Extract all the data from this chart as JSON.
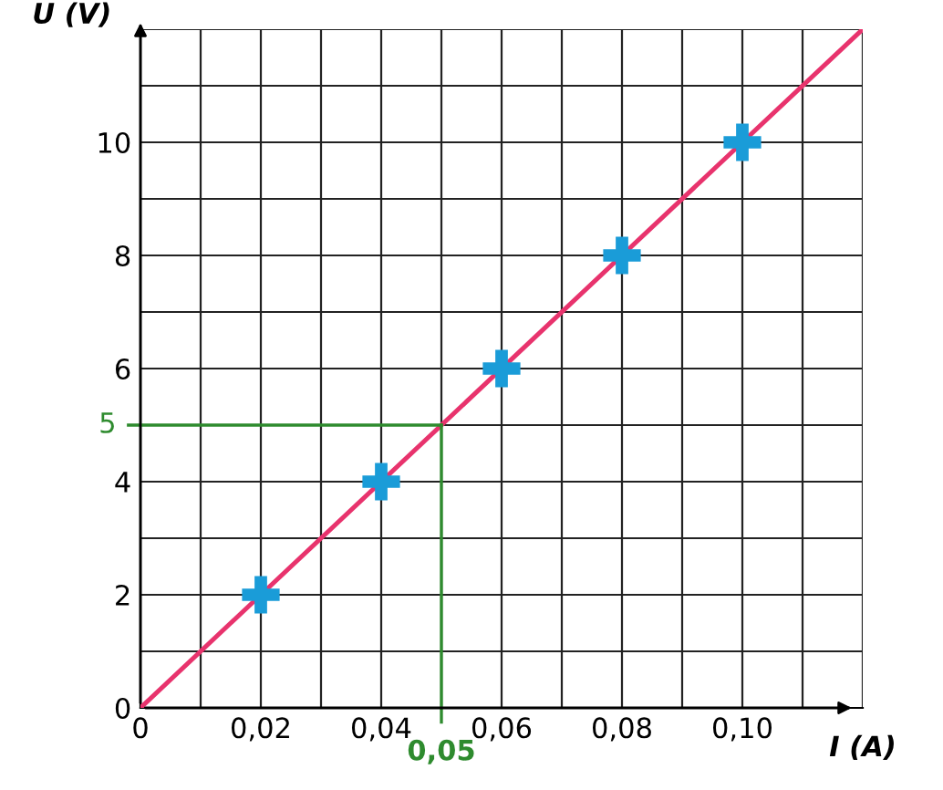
{
  "chart_data": {
    "type": "scatter",
    "xlabel": "I (A)",
    "ylabel": "U (V)",
    "series": [
      {
        "color": "#1a9cd8",
        "marker": "cross",
        "x": [
          0.02,
          0.04,
          0.06,
          0.08,
          0.1
        ],
        "values": [
          2,
          4,
          6,
          8,
          10
        ]
      },
      {
        "type": "line",
        "color": "#e8336d",
        "marker": "none",
        "x": [
          0,
          0.12
        ],
        "values": [
          0,
          12
        ]
      }
    ],
    "xlim": [
      0,
      0.12
    ],
    "ylim": [
      0,
      12
    ],
    "xticks": [
      {
        "value": 0,
        "label": "0"
      },
      {
        "value": 0.01,
        "label": null
      },
      {
        "value": 0.02,
        "label": "0,02"
      },
      {
        "value": 0.03,
        "label": null
      },
      {
        "value": 0.04,
        "label": "0,04"
      },
      {
        "value": 0.05,
        "label": null
      },
      {
        "value": 0.06,
        "label": "0,06"
      },
      {
        "value": 0.07,
        "label": null
      },
      {
        "value": 0.08,
        "label": "0,08"
      },
      {
        "value": 0.09,
        "label": null
      },
      {
        "value": 0.1,
        "label": "0,10"
      },
      {
        "value": 0.11,
        "label": null
      },
      {
        "value": 0.12,
        "label": null
      }
    ],
    "yticks": [
      0,
      {
        "value": 1,
        "label": null
      },
      2,
      {
        "value": 3,
        "label": null
      },
      4,
      {
        "value": 5,
        "label": null
      },
      6,
      {
        "value": 7,
        "label": null
      },
      8,
      {
        "value": 9,
        "label": null
      },
      10,
      {
        "value": 11,
        "label": null
      },
      {
        "value": 12,
        "label": null
      }
    ],
    "grid": true,
    "ref_lines": [
      {
        "axis": "x",
        "value": 0.05,
        "label": "0,05",
        "color": "#2e8b2e"
      },
      {
        "axis": "y",
        "value": 5,
        "label": "5",
        "color": "#2e8b2e"
      }
    ]
  }
}
